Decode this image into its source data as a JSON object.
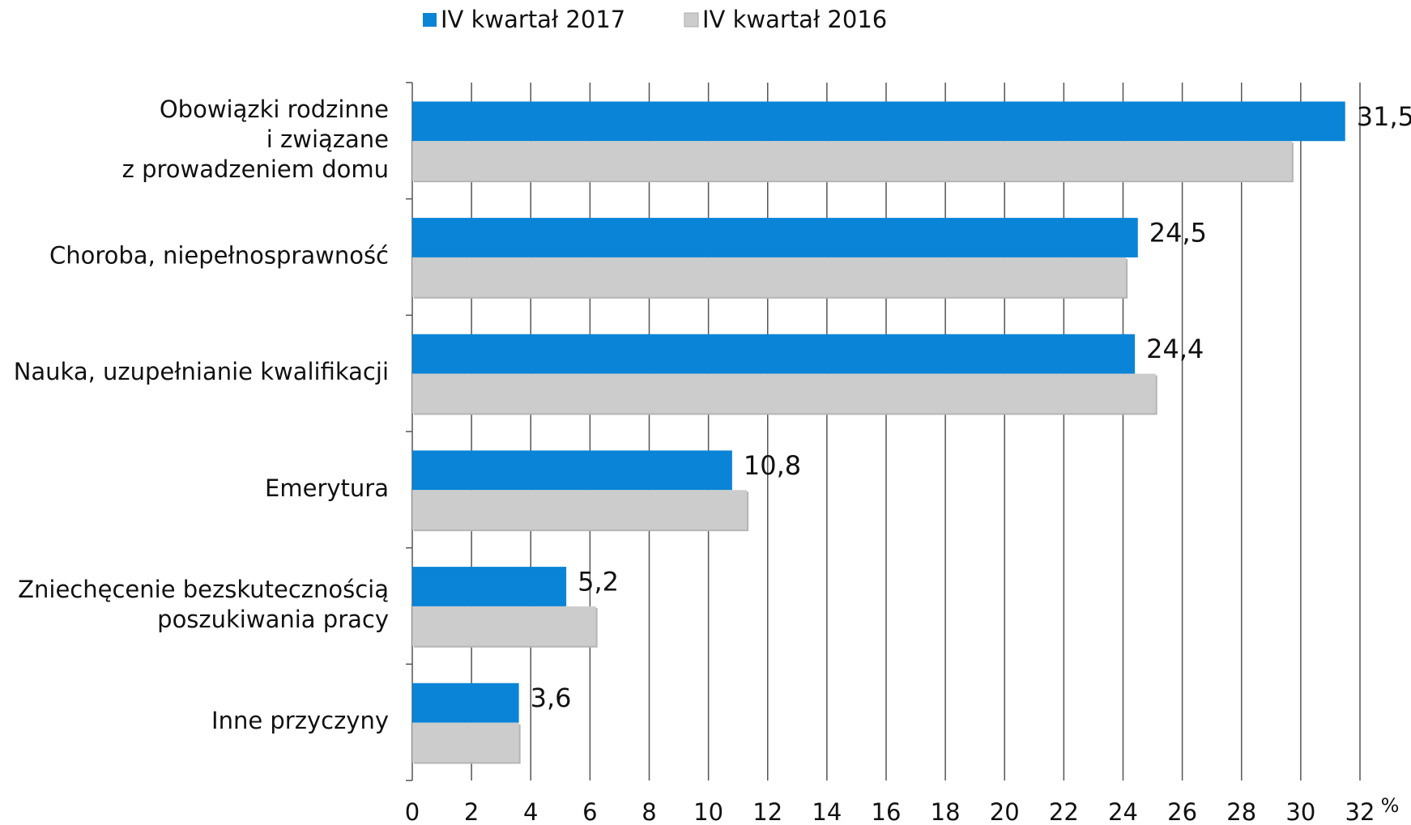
{
  "chart_data": {
    "type": "bar",
    "orientation": "horizontal",
    "categories": [
      [
        "Obowiązki rodzinne",
        "i związane",
        "z prowadzeniem domu"
      ],
      [
        "Choroba, niepełnosprawność"
      ],
      [
        "Nauka, uzupełnianie kwalifikacji"
      ],
      [
        "Emerytura"
      ],
      [
        "Zniechęcenie bezskutecznością",
        "poszukiwania pracy"
      ],
      [
        "Inne przyczyny"
      ]
    ],
    "series": [
      {
        "name": "IV kwartał 2017",
        "color": "#0a84d6",
        "values": [
          31.5,
          24.5,
          24.4,
          10.8,
          5.2,
          3.6
        ],
        "value_labels": [
          "31,5",
          "24,5",
          "24,4",
          "10,8",
          "5,2",
          "3,6"
        ]
      },
      {
        "name": "IV kwartał 2016",
        "color": "#cccccc",
        "values": [
          29.7,
          24.1,
          25.1,
          11.3,
          6.2,
          3.6
        ]
      }
    ],
    "x_label": "%",
    "xlim": [
      0,
      32
    ],
    "xticks": [
      0,
      2,
      4,
      6,
      8,
      10,
      12,
      14,
      16,
      18,
      20,
      22,
      24,
      26,
      28,
      30,
      32
    ],
    "grid": true,
    "legend": "top"
  }
}
